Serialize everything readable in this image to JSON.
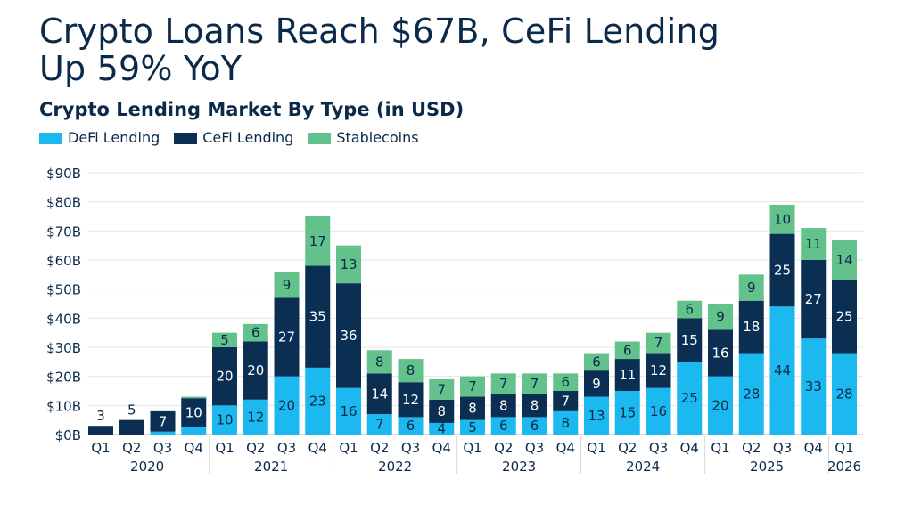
{
  "title_line1": "Crypto Loans Reach $67B, CeFi Lending",
  "title_line2": "Up 59% YoY",
  "colors": {
    "defi": "#1cb8f0",
    "cefi": "#0a2f53",
    "stable": "#63c28c",
    "axis_text": "#0b2a4a",
    "grid": "#e6e6e6"
  },
  "chart_data": {
    "type": "bar",
    "stacked": true,
    "title": "Crypto Loans Reach $67B, CeFi Lending Up 59% YoY",
    "subtitle": "Crypto Lending Market By Type (in USD)",
    "legend_position": "top-left",
    "grid": true,
    "ylim": [
      0,
      90
    ],
    "yticks": [
      "$0B",
      "$10B",
      "$20B",
      "$30B",
      "$40B",
      "$50B",
      "$60B",
      "$70B",
      "$80B",
      "$90B"
    ],
    "categories": [
      "Q1",
      "Q2",
      "Q3",
      "Q4",
      "Q1",
      "Q2",
      "Q3",
      "Q4",
      "Q1",
      "Q2",
      "Q3",
      "Q4",
      "Q1",
      "Q2",
      "Q3",
      "Q4",
      "Q1",
      "Q2",
      "Q3",
      "Q4",
      "Q1",
      "Q2",
      "Q3",
      "Q4",
      "Q1"
    ],
    "years": [
      {
        "label": "2020",
        "count": 4
      },
      {
        "label": "2021",
        "count": 4
      },
      {
        "label": "2022",
        "count": 4
      },
      {
        "label": "2023",
        "count": 4
      },
      {
        "label": "2024",
        "count": 4
      },
      {
        "label": "2025",
        "count": 4
      },
      {
        "label": "2026",
        "count": 1
      }
    ],
    "series": [
      {
        "name": "DeFi Lending",
        "key": "defi",
        "values": [
          0,
          0,
          1,
          2.5,
          10,
          12,
          20,
          23,
          16,
          7,
          6,
          4,
          5,
          6,
          6,
          8,
          13,
          15,
          16,
          25,
          20,
          28,
          44,
          33,
          28
        ],
        "labels": [
          "",
          "",
          "",
          "",
          "10",
          "12",
          "20",
          "23",
          "16",
          "7",
          "6",
          "4",
          "5",
          "6",
          "6",
          "8",
          "13",
          "15",
          "16",
          "25",
          "20",
          "28",
          "44",
          "33",
          "28"
        ]
      },
      {
        "name": "CeFi Lending",
        "key": "cefi",
        "values": [
          3,
          5,
          7,
          10,
          20,
          20,
          27,
          35,
          36,
          14,
          12,
          8,
          8,
          8,
          8,
          7,
          9,
          11,
          12,
          15,
          16,
          18,
          25,
          27,
          25
        ],
        "labels": [
          "3",
          "5",
          "7",
          "10",
          "20",
          "20",
          "27",
          "35",
          "36",
          "14",
          "12",
          "8",
          "8",
          "8",
          "8",
          "7",
          "9",
          "11",
          "12",
          "15",
          "16",
          "18",
          "25",
          "27",
          "25"
        ]
      },
      {
        "name": "Stablecoins",
        "key": "stable",
        "values": [
          0,
          0,
          0,
          0.5,
          5,
          6,
          9,
          17,
          13,
          8,
          8,
          7,
          7,
          7,
          7,
          6,
          6,
          6,
          7,
          6,
          9,
          9,
          10,
          11,
          14
        ],
        "labels": [
          "",
          "",
          "",
          "",
          "5",
          "6",
          "9",
          "17",
          "13",
          "8",
          "8",
          "7",
          "7",
          "7",
          "7",
          "6",
          "6",
          "6",
          "7",
          "6",
          "9",
          "9",
          "10",
          "11",
          "14"
        ]
      }
    ]
  }
}
